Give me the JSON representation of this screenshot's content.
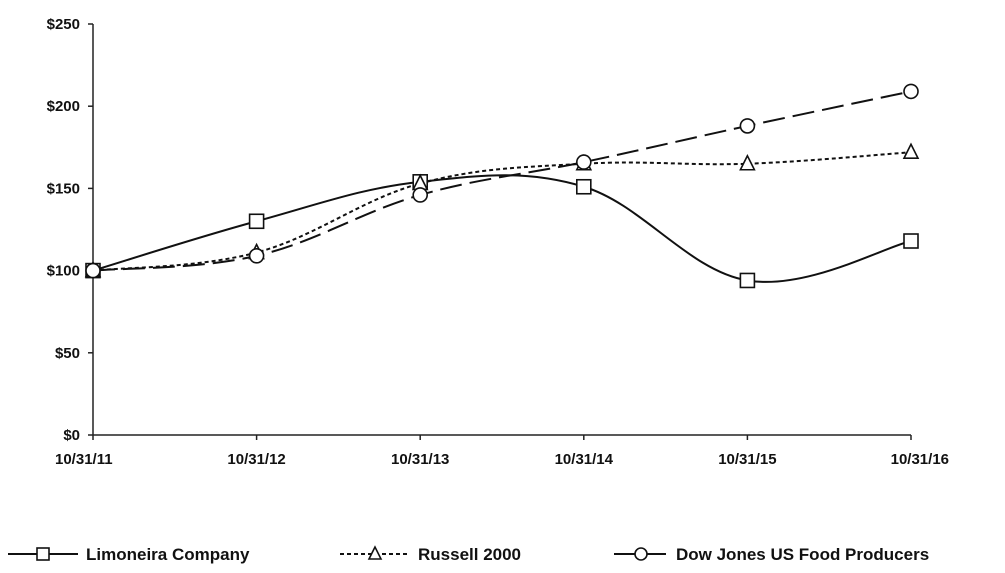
{
  "chart_data": {
    "type": "line",
    "categories": [
      "10/31/11",
      "10/31/12",
      "10/31/13",
      "10/31/14",
      "10/31/15",
      "10/31/16"
    ],
    "y_ticks": [
      "$0",
      "$50",
      "$100",
      "$150",
      "$200",
      "$250"
    ],
    "ylim": [
      0,
      250
    ],
    "grid": false,
    "legend_position": "bottom",
    "series": [
      {
        "name": "Limoneira Company",
        "values": [
          100,
          130,
          154,
          151,
          94,
          118
        ],
        "marker": "square",
        "dash": "solid",
        "color": "#111111"
      },
      {
        "name": "Russell 2000",
        "values": [
          100,
          111,
          153,
          165,
          165,
          172
        ],
        "marker": "triangle",
        "dash": "dotted",
        "color": "#111111"
      },
      {
        "name": "Dow Jones US Food Producers",
        "values": [
          100,
          109,
          146,
          166,
          188,
          209
        ],
        "marker": "circle",
        "dash": "dashed",
        "color": "#111111"
      }
    ]
  }
}
